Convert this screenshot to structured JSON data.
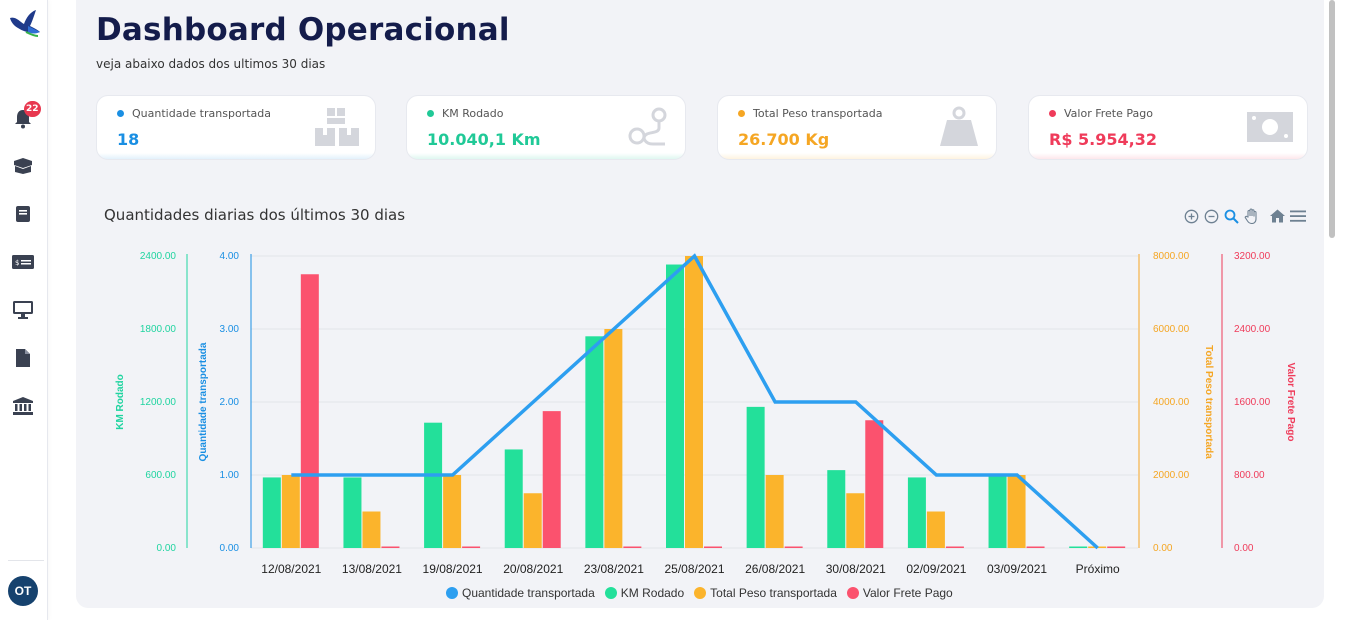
{
  "sidebar": {
    "notifications_count": "22",
    "avatar_initials": "OT",
    "items": [
      "bell-icon",
      "box-icon",
      "book-icon",
      "money-card-icon",
      "monitor-icon",
      "document-icon",
      "bank-icon"
    ]
  },
  "header": {
    "title": "Dashboard Operacional",
    "subtitle": "veja abaixo dados dos ultimos 30 dias"
  },
  "cards": [
    {
      "label": "Quantidade transportada",
      "value": "18",
      "color": "#1a8fe3",
      "icon": "boxes-icon"
    },
    {
      "label": "KM Rodado",
      "value": "10.040,1 Km",
      "color": "#20c997",
      "icon": "route-icon"
    },
    {
      "label": "Total Peso transportada",
      "value": "26.700 Kg",
      "color": "#f5a623",
      "icon": "weight-icon"
    },
    {
      "label": "Valor Frete Pago",
      "value": "R$ 5.954,32",
      "color": "#ef3b5a",
      "icon": "banknote-icon"
    }
  ],
  "chart_title": "Quantidades diarias dos últimos 30 dias",
  "toolbar": [
    "zoom-in-icon",
    "zoom-out-icon",
    "magnifier-icon",
    "pan-hand-icon",
    "home-icon",
    "menu-icon"
  ],
  "chart_data": {
    "type": "bar",
    "categories": [
      "12/08/2021",
      "13/08/2021",
      "19/08/2021",
      "20/08/2021",
      "23/08/2021",
      "25/08/2021",
      "26/08/2021",
      "30/08/2021",
      "02/09/2021",
      "03/09/2021",
      "Próximo"
    ],
    "series": [
      {
        "name": "Quantidade transportada",
        "type": "line",
        "axis": "Quantidade transportada",
        "color": "#2d9ff0",
        "values": [
          1,
          1,
          1,
          2,
          3,
          4,
          2,
          2,
          1,
          1,
          0
        ]
      },
      {
        "name": "KM Rodado",
        "type": "bar",
        "axis": "KM Rodado",
        "color": "#23e09a",
        "values": [
          580,
          580,
          1030,
          810,
          1740,
          2330,
          1160,
          640,
          580,
          590,
          10
        ]
      },
      {
        "name": "Total Peso transportada",
        "type": "bar",
        "axis": "Total Peso transportada",
        "color": "#fbb42c",
        "values": [
          2000,
          1000,
          2000,
          1500,
          6000,
          8000,
          2000,
          1500,
          1000,
          2000,
          0
        ]
      },
      {
        "name": "Valor Frete Pago",
        "type": "bar",
        "axis": "Valor Frete Pago",
        "color": "#fb526e",
        "values": [
          3000,
          0,
          0,
          1500,
          0,
          0,
          0,
          1400,
          0,
          0,
          0
        ]
      }
    ],
    "axes": [
      {
        "name": "KM Rodado",
        "label": "KM Rodado",
        "side": "left",
        "color": "#20d4a0",
        "range": [
          0,
          2400
        ],
        "ticks": [
          "0.00",
          "600.00",
          "1200.00",
          "1800.00",
          "2400.00"
        ]
      },
      {
        "name": "Quantidade transportada",
        "label": "Quantidade transportada",
        "side": "left",
        "color": "#1a8fe3",
        "range": [
          0,
          4
        ],
        "ticks": [
          "0.00",
          "1.00",
          "2.00",
          "3.00",
          "4.00"
        ]
      },
      {
        "name": "Total Peso transportada",
        "label": "Total Peso transportada",
        "side": "right",
        "color": "#f5a623",
        "range": [
          0,
          8000
        ],
        "ticks": [
          "0.00",
          "2000.00",
          "4000.00",
          "6000.00",
          "8000.00"
        ]
      },
      {
        "name": "Valor Frete Pago",
        "label": "Valor Frete Pago",
        "side": "right",
        "color": "#ef3b5a",
        "range": [
          0,
          3200
        ],
        "ticks": [
          "0.00",
          "800.00",
          "1600.00",
          "2400.00",
          "3200.00"
        ]
      }
    ],
    "grid": true,
    "legend_position": "bottom"
  }
}
